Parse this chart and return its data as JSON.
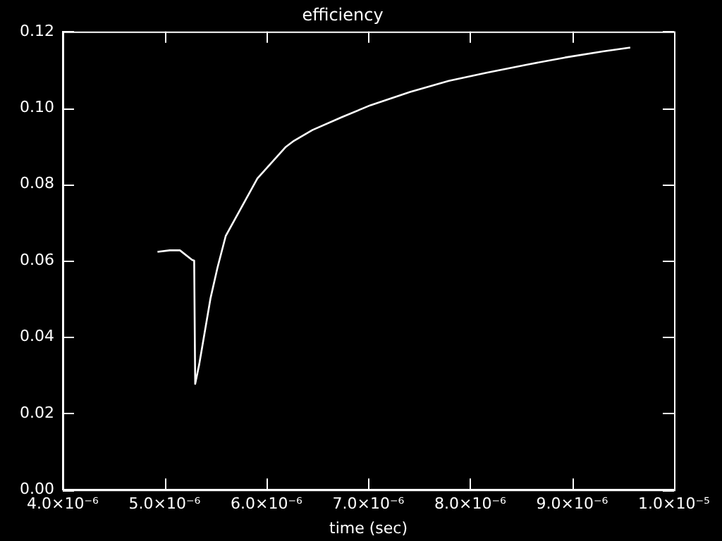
{
  "chart_data": {
    "type": "line",
    "title": "efficiency",
    "xlabel": "time (sec)",
    "x": [
      4.93e-06,
      5.05e-06,
      5.15e-06,
      5.27e-06,
      5.29e-06,
      5.3e-06,
      5.34e-06,
      5.45e-06,
      5.52e-06,
      5.6e-06,
      5.91e-06,
      6.19e-06,
      6.27e-06,
      6.45e-06,
      6.74e-06,
      7.02e-06,
      7.41e-06,
      7.79e-06,
      8.16e-06,
      8.55e-06,
      8.93e-06,
      9.3e-06,
      9.57e-06
    ],
    "series": [
      {
        "color": "#ffffff",
        "values": [
          0.0623,
          0.0627,
          0.0627,
          0.0602,
          0.06,
          0.0277,
          0.0329,
          0.0501,
          0.0583,
          0.0665,
          0.0815,
          0.0898,
          0.0914,
          0.0942,
          0.0976,
          0.1007,
          0.1042,
          0.1071,
          0.1092,
          0.1113,
          0.1132,
          0.1148,
          0.1158
        ]
      }
    ],
    "xlim": [
      4e-06,
      1e-05
    ],
    "xticks": [
      {
        "value": 4e-06,
        "label": "4.0×10⁻⁶"
      },
      {
        "value": 5e-06,
        "label": "5.0×10⁻⁶"
      },
      {
        "value": 6e-06,
        "label": "6.0×10⁻⁶"
      },
      {
        "value": 7e-06,
        "label": "7.0×10⁻⁶"
      },
      {
        "value": 8e-06,
        "label": "8.0×10⁻⁶"
      },
      {
        "value": 9e-06,
        "label": "9.0×10⁻⁶"
      },
      {
        "value": 1e-05,
        "label": "1.0×10⁻⁵"
      }
    ],
    "ylim": [
      0,
      0.12
    ],
    "yticks": [
      {
        "value": 0,
        "label": "0.00"
      },
      {
        "value": 0.02,
        "label": "0.02"
      },
      {
        "value": 0.04,
        "label": "0.04"
      },
      {
        "value": 0.06,
        "label": "0.06"
      },
      {
        "value": 0.08,
        "label": "0.08"
      },
      {
        "value": 0.1,
        "label": "0.10"
      },
      {
        "value": 0.12,
        "label": "0.12"
      }
    ],
    "marker": "none",
    "line_style": "solid"
  }
}
